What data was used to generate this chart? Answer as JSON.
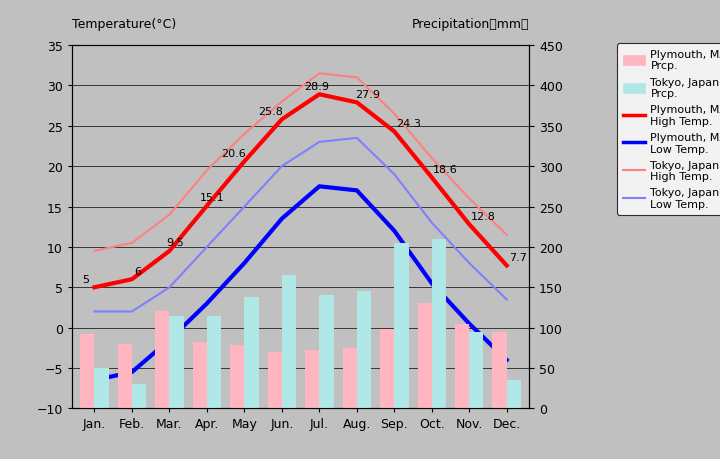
{
  "months": [
    "Jan.",
    "Feb.",
    "Mar.",
    "Apr.",
    "May",
    "Jun.",
    "Jul.",
    "Aug.",
    "Sep.",
    "Oct.",
    "Nov.",
    "Dec."
  ],
  "plymouth_high": [
    5,
    6,
    9.5,
    15.1,
    20.6,
    25.8,
    28.9,
    27.9,
    24.3,
    18.6,
    12.8,
    7.7
  ],
  "plymouth_low": [
    -6.5,
    -5.5,
    -1.5,
    3,
    8,
    13.5,
    17.5,
    17,
    12,
    5.5,
    0.5,
    -4
  ],
  "tokyo_high": [
    9.5,
    10.5,
    14,
    19.5,
    24,
    28,
    31.5,
    31,
    26.5,
    21,
    16,
    11.5
  ],
  "tokyo_low": [
    2,
    2,
    5,
    10,
    15,
    20,
    23,
    23.5,
    19,
    13,
    8,
    3.5
  ],
  "plymouth_prcp_mm": [
    92,
    80,
    120,
    82,
    78,
    70,
    72,
    75,
    98,
    130,
    105,
    95
  ],
  "tokyo_prcp_mm": [
    50,
    30,
    115,
    115,
    138,
    165,
    140,
    145,
    205,
    210,
    95,
    35
  ],
  "plymouth_high_labels": [
    "5",
    "6",
    "9.5",
    "15.1",
    "20.6",
    "25.8",
    "28.9",
    "27.9",
    "24.3",
    "18.6",
    "12.8",
    "7.7"
  ],
  "temp_ylim": [
    -10,
    35
  ],
  "prcp_ylim": [
    0,
    450
  ],
  "plot_bg": "#c0c0c0",
  "fig_bg": "#c0c0c0",
  "plymouth_high_color": "#ff0000",
  "plymouth_low_color": "#0000ff",
  "tokyo_high_color": "#ff8080",
  "tokyo_low_color": "#8080ff",
  "plymouth_prcp_color": "#ffb6c1",
  "tokyo_prcp_color": "#b0e8e8",
  "title_left": "Temperature(°C)",
  "title_right": "Precipitation（mm）",
  "legend_labels": [
    "Plymouth, MA\nPrcp.",
    "Tokyo, Japan\nPrcp.",
    "Plymouth, MA\nHigh Temp.",
    "Plymouth, MA\nLow Temp.",
    "Tokyo, Japan\nHigh Temp.",
    "Tokyo, Japan\nLow Temp."
  ]
}
